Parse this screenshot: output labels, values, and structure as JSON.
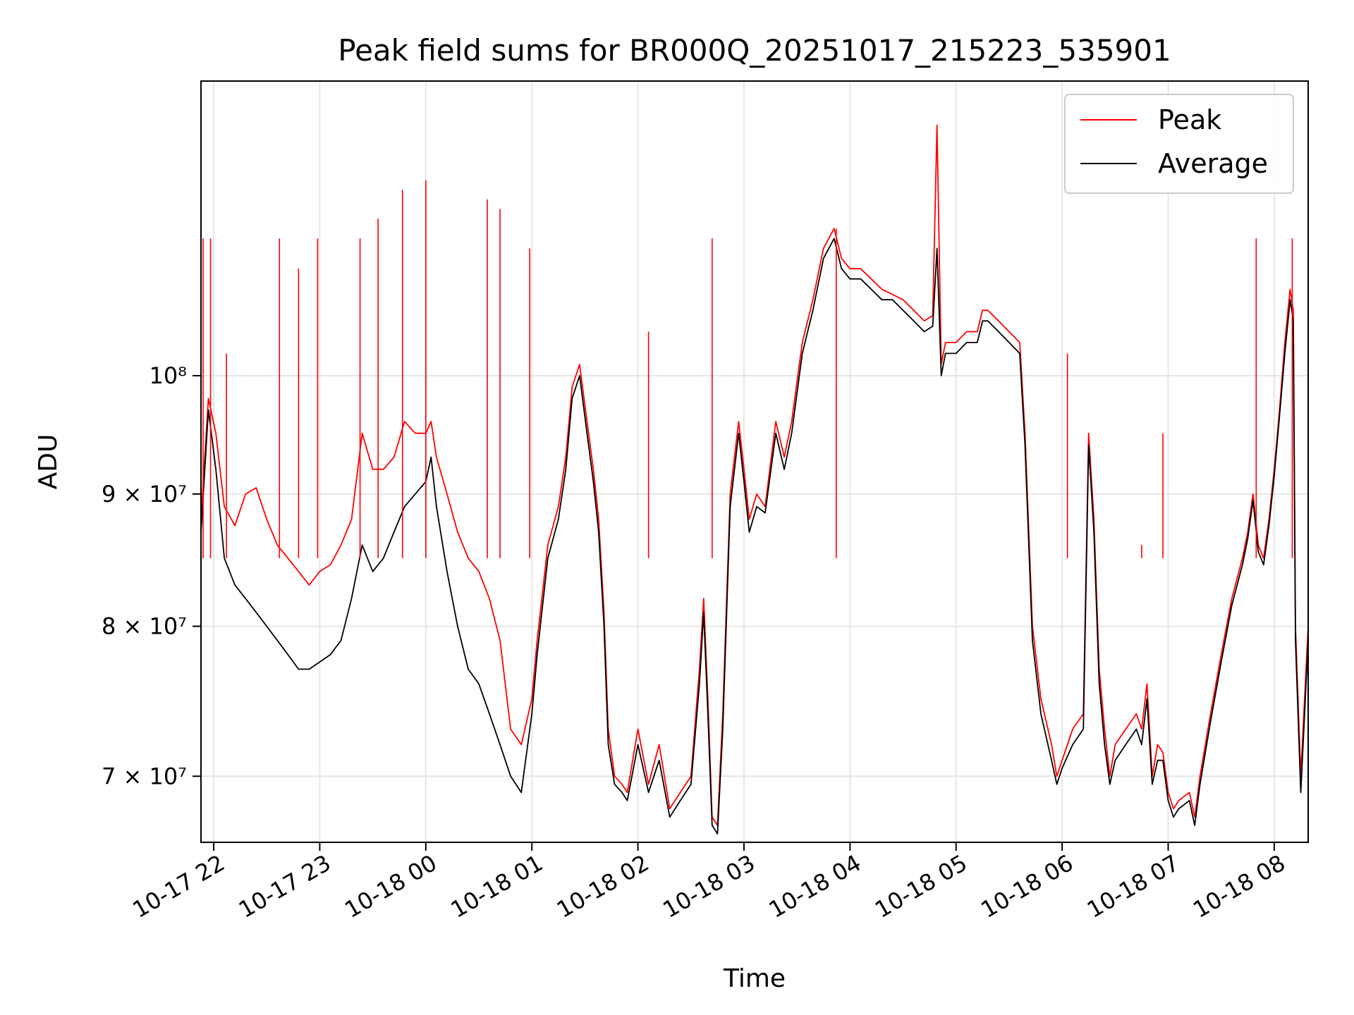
{
  "chart_data": {
    "type": "line",
    "title": "Peak field sums for BR000Q_20251017_215223_535901",
    "xlabel": "Time",
    "ylabel": "ADU",
    "yscale": "log",
    "ylim": [
      66000000,
      130000000
    ],
    "xlim_hours": [
      21.88,
      32.32
    ],
    "grid": true,
    "legend_position": "upper right",
    "x_ticks": [
      {
        "hour": 22,
        "label": "10-17 22"
      },
      {
        "hour": 23,
        "label": "10-17 23"
      },
      {
        "hour": 24,
        "label": "10-18 00"
      },
      {
        "hour": 25,
        "label": "10-18 01"
      },
      {
        "hour": 26,
        "label": "10-18 02"
      },
      {
        "hour": 27,
        "label": "10-18 03"
      },
      {
        "hour": 28,
        "label": "10-18 04"
      },
      {
        "hour": 29,
        "label": "10-18 05"
      },
      {
        "hour": 30,
        "label": "10-18 06"
      },
      {
        "hour": 31,
        "label": "10-18 07"
      },
      {
        "hour": 32,
        "label": "10-18 08"
      }
    ],
    "y_ticks": [
      {
        "value": 70000000,
        "label": "7 × 10⁷"
      },
      {
        "value": 80000000,
        "label": "8 × 10⁷"
      },
      {
        "value": 90000000,
        "label": "9 × 10⁷"
      },
      {
        "value": 100000000,
        "label": "10⁸"
      }
    ],
    "series": [
      {
        "name": "Peak",
        "color": "#ff0000",
        "points": [
          [
            21.88,
            88
          ],
          [
            21.95,
            98
          ],
          [
            22.02,
            95
          ],
          [
            22.1,
            89
          ],
          [
            22.2,
            87.5
          ],
          [
            22.3,
            90
          ],
          [
            22.4,
            90.5
          ],
          [
            22.5,
            88
          ],
          [
            22.6,
            86
          ],
          [
            22.7,
            85
          ],
          [
            22.8,
            84
          ],
          [
            22.9,
            83
          ],
          [
            23.0,
            84
          ],
          [
            23.1,
            84.5
          ],
          [
            23.2,
            86
          ],
          [
            23.3,
            88
          ],
          [
            23.4,
            95
          ],
          [
            23.5,
            92
          ],
          [
            23.6,
            92
          ],
          [
            23.7,
            93
          ],
          [
            23.8,
            96
          ],
          [
            23.9,
            95
          ],
          [
            24.0,
            95
          ],
          [
            24.05,
            96
          ],
          [
            24.1,
            93
          ],
          [
            24.2,
            90
          ],
          [
            24.3,
            87
          ],
          [
            24.4,
            85
          ],
          [
            24.5,
            84
          ],
          [
            24.6,
            82
          ],
          [
            24.7,
            79
          ],
          [
            24.8,
            73
          ],
          [
            24.9,
            72
          ],
          [
            25.0,
            75
          ],
          [
            25.05,
            79
          ],
          [
            25.15,
            86
          ],
          [
            25.25,
            89
          ],
          [
            25.32,
            93
          ],
          [
            25.38,
            99
          ],
          [
            25.45,
            101
          ],
          [
            25.52,
            96
          ],
          [
            25.58,
            92
          ],
          [
            25.63,
            88
          ],
          [
            25.68,
            81
          ],
          [
            25.72,
            73
          ],
          [
            25.78,
            70
          ],
          [
            25.85,
            69.5
          ],
          [
            25.9,
            69
          ],
          [
            26.0,
            73
          ],
          [
            26.1,
            69.5
          ],
          [
            26.2,
            72
          ],
          [
            26.3,
            68
          ],
          [
            26.4,
            69
          ],
          [
            26.5,
            70
          ],
          [
            26.58,
            77
          ],
          [
            26.62,
            82
          ],
          [
            26.66,
            75
          ],
          [
            26.7,
            67.5
          ],
          [
            26.75,
            67
          ],
          [
            26.8,
            74
          ],
          [
            26.87,
            90
          ],
          [
            26.95,
            96
          ],
          [
            27.0,
            92
          ],
          [
            27.05,
            88
          ],
          [
            27.12,
            90
          ],
          [
            27.2,
            89
          ],
          [
            27.3,
            96
          ],
          [
            27.38,
            93
          ],
          [
            27.45,
            96
          ],
          [
            27.55,
            103
          ],
          [
            27.65,
            107
          ],
          [
            27.75,
            112
          ],
          [
            27.85,
            114
          ],
          [
            27.92,
            111
          ],
          [
            28.0,
            110
          ],
          [
            28.1,
            110
          ],
          [
            28.2,
            109
          ],
          [
            28.3,
            108
          ],
          [
            28.4,
            107.5
          ],
          [
            28.5,
            107
          ],
          [
            28.6,
            106
          ],
          [
            28.7,
            105
          ],
          [
            28.78,
            105.5
          ],
          [
            28.82,
            125
          ],
          [
            28.86,
            101
          ],
          [
            28.9,
            103
          ],
          [
            29.0,
            103
          ],
          [
            29.1,
            104
          ],
          [
            29.2,
            104
          ],
          [
            29.25,
            106
          ],
          [
            29.3,
            106
          ],
          [
            29.4,
            105
          ],
          [
            29.5,
            104
          ],
          [
            29.6,
            103
          ],
          [
            29.65,
            95
          ],
          [
            29.72,
            80
          ],
          [
            29.8,
            75
          ],
          [
            29.9,
            72
          ],
          [
            29.95,
            70
          ],
          [
            30.0,
            71
          ],
          [
            30.1,
            73
          ],
          [
            30.2,
            74
          ],
          [
            30.25,
            95
          ],
          [
            30.3,
            88
          ],
          [
            30.35,
            77
          ],
          [
            30.4,
            73
          ],
          [
            30.45,
            70
          ],
          [
            30.5,
            72
          ],
          [
            30.6,
            73
          ],
          [
            30.7,
            74
          ],
          [
            30.75,
            73
          ],
          [
            30.8,
            76
          ],
          [
            30.85,
            70
          ],
          [
            30.9,
            72
          ],
          [
            30.95,
            71.5
          ],
          [
            31.0,
            69
          ],
          [
            31.05,
            68
          ],
          [
            31.1,
            68.5
          ],
          [
            31.2,
            69
          ],
          [
            31.25,
            67.5
          ],
          [
            31.3,
            70
          ],
          [
            31.4,
            74
          ],
          [
            31.5,
            78
          ],
          [
            31.6,
            82
          ],
          [
            31.7,
            85
          ],
          [
            31.75,
            87
          ],
          [
            31.8,
            90
          ],
          [
            31.85,
            86
          ],
          [
            31.9,
            85
          ],
          [
            31.95,
            88
          ],
          [
            32.0,
            92
          ],
          [
            32.05,
            97
          ],
          [
            32.1,
            103
          ],
          [
            32.15,
            108
          ],
          [
            32.18,
            106
          ],
          [
            32.2,
            80
          ],
          [
            32.25,
            70
          ],
          [
            32.32,
            80
          ]
        ]
      },
      {
        "name": "Average",
        "color": "#000000",
        "points": [
          [
            21.88,
            87
          ],
          [
            21.95,
            97
          ],
          [
            22.02,
            92
          ],
          [
            22.1,
            85
          ],
          [
            22.2,
            83
          ],
          [
            22.3,
            82
          ],
          [
            22.4,
            81
          ],
          [
            22.5,
            80
          ],
          [
            22.6,
            79
          ],
          [
            22.7,
            78
          ],
          [
            22.8,
            77
          ],
          [
            22.9,
            77
          ],
          [
            23.0,
            77.5
          ],
          [
            23.1,
            78
          ],
          [
            23.2,
            79
          ],
          [
            23.3,
            82
          ],
          [
            23.4,
            86
          ],
          [
            23.5,
            84
          ],
          [
            23.6,
            85
          ],
          [
            23.7,
            87
          ],
          [
            23.8,
            89
          ],
          [
            23.9,
            90
          ],
          [
            24.0,
            91
          ],
          [
            24.05,
            93
          ],
          [
            24.1,
            89
          ],
          [
            24.2,
            84
          ],
          [
            24.3,
            80
          ],
          [
            24.4,
            77
          ],
          [
            24.5,
            76
          ],
          [
            24.6,
            74
          ],
          [
            24.7,
            72
          ],
          [
            24.8,
            70
          ],
          [
            24.9,
            69
          ],
          [
            25.0,
            74
          ],
          [
            25.05,
            78
          ],
          [
            25.15,
            85
          ],
          [
            25.25,
            88
          ],
          [
            25.32,
            92
          ],
          [
            25.38,
            98
          ],
          [
            25.45,
            100
          ],
          [
            25.52,
            95
          ],
          [
            25.58,
            91
          ],
          [
            25.63,
            87
          ],
          [
            25.68,
            80
          ],
          [
            25.72,
            72
          ],
          [
            25.78,
            69.5
          ],
          [
            25.85,
            69
          ],
          [
            25.9,
            68.5
          ],
          [
            26.0,
            72
          ],
          [
            26.1,
            69
          ],
          [
            26.2,
            71
          ],
          [
            26.3,
            67.5
          ],
          [
            26.4,
            68.5
          ],
          [
            26.5,
            69.5
          ],
          [
            26.58,
            76
          ],
          [
            26.62,
            81
          ],
          [
            26.66,
            74
          ],
          [
            26.7,
            67
          ],
          [
            26.75,
            66.5
          ],
          [
            26.8,
            73
          ],
          [
            26.87,
            89
          ],
          [
            26.95,
            95
          ],
          [
            27.0,
            91
          ],
          [
            27.05,
            87
          ],
          [
            27.12,
            89
          ],
          [
            27.2,
            88.5
          ],
          [
            27.3,
            95
          ],
          [
            27.38,
            92
          ],
          [
            27.45,
            95
          ],
          [
            27.55,
            102
          ],
          [
            27.65,
            106
          ],
          [
            27.75,
            111
          ],
          [
            27.85,
            113
          ],
          [
            27.92,
            110
          ],
          [
            28.0,
            109
          ],
          [
            28.1,
            109
          ],
          [
            28.2,
            108
          ],
          [
            28.3,
            107
          ],
          [
            28.4,
            107
          ],
          [
            28.5,
            106
          ],
          [
            28.6,
            105
          ],
          [
            28.7,
            104
          ],
          [
            28.78,
            104.5
          ],
          [
            28.82,
            112
          ],
          [
            28.86,
            100
          ],
          [
            28.9,
            102
          ],
          [
            29.0,
            102
          ],
          [
            29.1,
            103
          ],
          [
            29.2,
            103
          ],
          [
            29.25,
            105
          ],
          [
            29.3,
            105
          ],
          [
            29.4,
            104
          ],
          [
            29.5,
            103
          ],
          [
            29.6,
            102
          ],
          [
            29.65,
            94
          ],
          [
            29.72,
            79
          ],
          [
            29.8,
            74
          ],
          [
            29.9,
            71
          ],
          [
            29.95,
            69.5
          ],
          [
            30.0,
            70.5
          ],
          [
            30.1,
            72
          ],
          [
            30.2,
            73
          ],
          [
            30.25,
            94
          ],
          [
            30.3,
            87
          ],
          [
            30.35,
            76
          ],
          [
            30.4,
            72
          ],
          [
            30.45,
            69.5
          ],
          [
            30.5,
            71
          ],
          [
            30.6,
            72
          ],
          [
            30.7,
            73
          ],
          [
            30.75,
            72
          ],
          [
            30.8,
            75
          ],
          [
            30.85,
            69.5
          ],
          [
            30.9,
            71
          ],
          [
            30.95,
            71
          ],
          [
            31.0,
            68.5
          ],
          [
            31.05,
            67.5
          ],
          [
            31.1,
            68
          ],
          [
            31.2,
            68.5
          ],
          [
            31.25,
            67
          ],
          [
            31.3,
            69.5
          ],
          [
            31.4,
            73.5
          ],
          [
            31.5,
            77.5
          ],
          [
            31.6,
            81.5
          ],
          [
            31.7,
            84.5
          ],
          [
            31.75,
            86.5
          ],
          [
            31.8,
            89.5
          ],
          [
            31.85,
            85.5
          ],
          [
            31.9,
            84.5
          ],
          [
            31.95,
            87.5
          ],
          [
            32.0,
            91.5
          ],
          [
            32.05,
            96.5
          ],
          [
            32.1,
            102
          ],
          [
            32.15,
            107
          ],
          [
            32.18,
            105
          ],
          [
            32.2,
            79
          ],
          [
            32.25,
            69
          ],
          [
            32.32,
            79
          ]
        ]
      }
    ],
    "spikes": [
      {
        "series": "Peak",
        "hour": 21.9,
        "value": 113
      },
      {
        "series": "Peak",
        "hour": 21.97,
        "value": 113
      },
      {
        "series": "Peak",
        "hour": 22.12,
        "value": 102
      },
      {
        "series": "Peak",
        "hour": 22.62,
        "value": 113
      },
      {
        "series": "Peak",
        "hour": 22.8,
        "value": 110
      },
      {
        "series": "Peak",
        "hour": 22.98,
        "value": 113
      },
      {
        "series": "Peak",
        "hour": 23.38,
        "value": 113
      },
      {
        "series": "Peak",
        "hour": 23.55,
        "value": 115
      },
      {
        "series": "Peak",
        "hour": 23.78,
        "value": 118
      },
      {
        "series": "Peak",
        "hour": 24.0,
        "value": 119
      },
      {
        "series": "Peak",
        "hour": 24.58,
        "value": 117
      },
      {
        "series": "Peak",
        "hour": 24.7,
        "value": 116
      },
      {
        "series": "Peak",
        "hour": 24.98,
        "value": 112
      },
      {
        "series": "Peak",
        "hour": 26.1,
        "value": 104
      },
      {
        "series": "Peak",
        "hour": 26.7,
        "value": 113
      },
      {
        "series": "Peak",
        "hour": 27.87,
        "value": 114
      },
      {
        "series": "Peak",
        "hour": 30.05,
        "value": 102
      },
      {
        "series": "Peak",
        "hour": 30.75,
        "value": 86
      },
      {
        "series": "Peak",
        "hour": 30.95,
        "value": 95
      },
      {
        "series": "Peak",
        "hour": 31.83,
        "value": 113
      },
      {
        "series": "Peak",
        "hour": 32.17,
        "value": 113
      }
    ]
  },
  "legend": {
    "peak_label": "Peak",
    "average_label": "Average"
  }
}
